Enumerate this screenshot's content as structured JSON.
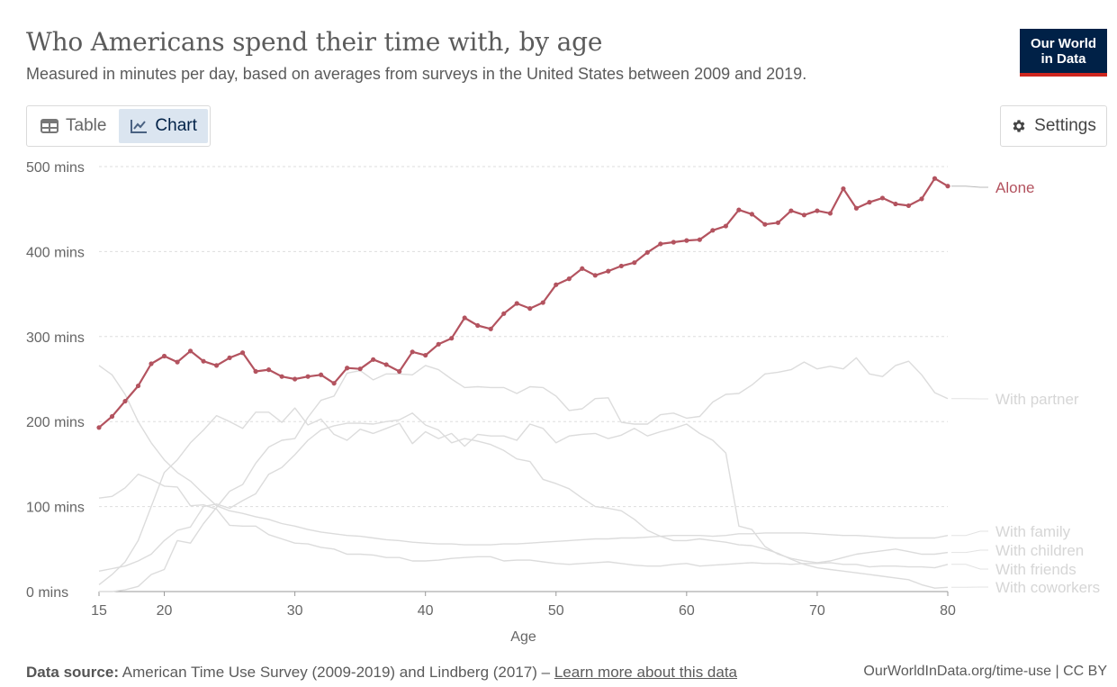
{
  "header": {
    "title": "Who Americans spend their time with, by age",
    "subtitle": "Measured in minutes per day, based on averages from surveys in the United States between 2009 and 2019.",
    "logo_line1": "Our World",
    "logo_line2": "in Data"
  },
  "tabs": [
    {
      "label": "Table",
      "icon": "table-icon"
    },
    {
      "label": "Chart",
      "icon": "line-chart-icon"
    }
  ],
  "settings": {
    "label": "Settings",
    "icon": "gear-icon"
  },
  "footer": {
    "source_label": "Data source:",
    "source_text": "American Time Use Survey (2009-2019) and Lindberg (2017) –",
    "learn_more": "Learn more about this data",
    "credit": "OurWorldInData.org/time-use | CC BY"
  },
  "colors": {
    "highlight": "#b3535f",
    "muted": "#dcdcdc",
    "grid": "#dddddd"
  },
  "chart_data": {
    "type": "line",
    "title": "Who Americans spend their time with, by age",
    "xlabel": "Age",
    "ylabel": "",
    "xlim": [
      15,
      80
    ],
    "ylim": [
      0,
      500
    ],
    "x_ticks": [
      15,
      20,
      30,
      40,
      50,
      60,
      70,
      80
    ],
    "y_ticks": [
      0,
      100,
      200,
      300,
      400,
      500
    ],
    "y_tick_labels": [
      "0 mins",
      "100 mins",
      "200 mins",
      "300 mins",
      "400 mins",
      "500 mins"
    ],
    "x": [
      15,
      16,
      17,
      18,
      19,
      20,
      21,
      22,
      23,
      24,
      25,
      26,
      27,
      28,
      29,
      30,
      31,
      32,
      33,
      34,
      35,
      36,
      37,
      38,
      39,
      40,
      41,
      42,
      43,
      44,
      45,
      46,
      47,
      48,
      49,
      50,
      51,
      52,
      53,
      54,
      55,
      56,
      57,
      58,
      59,
      60,
      61,
      62,
      63,
      64,
      65,
      66,
      67,
      68,
      69,
      70,
      71,
      72,
      73,
      74,
      75,
      76,
      77,
      78,
      79,
      80
    ],
    "highlighted_series": "Alone",
    "series": [
      {
        "name": "Alone",
        "values": [
          193,
          206,
          224,
          242,
          268,
          277,
          270,
          283,
          271,
          266,
          275,
          281,
          259,
          261,
          253,
          250,
          253,
          255,
          245,
          263,
          262,
          273,
          267,
          259,
          282,
          278,
          291,
          298,
          322,
          313,
          309,
          327,
          339,
          333,
          340,
          361,
          368,
          380,
          372,
          377,
          383,
          387,
          399,
          409,
          411,
          413,
          414,
          425,
          430,
          449,
          444,
          432,
          434,
          448,
          443,
          448,
          445,
          474,
          451,
          458,
          463,
          456,
          454,
          462,
          486,
          477
        ]
      },
      {
        "name": "With partner",
        "values": [
          0,
          0,
          2,
          6,
          20,
          26,
          60,
          57,
          80,
          99,
          118,
          126,
          151,
          170,
          178,
          180,
          205,
          225,
          230,
          257,
          260,
          249,
          256,
          256,
          255,
          266,
          261,
          250,
          240,
          241,
          240,
          240,
          233,
          241,
          240,
          230,
          213,
          215,
          227,
          228,
          199,
          197,
          197,
          208,
          210,
          204,
          206,
          223,
          232,
          233,
          243,
          256,
          258,
          261,
          270,
          262,
          265,
          262,
          275,
          256,
          253,
          266,
          271,
          255,
          234,
          227
        ]
      },
      {
        "name": "With family",
        "values": [
          266,
          255,
          232,
          200,
          175,
          155,
          140,
          130,
          115,
          101,
          95,
          92,
          88,
          85,
          80,
          77,
          73,
          70,
          68,
          66,
          65,
          63,
          61,
          60,
          58,
          57,
          56,
          56,
          55,
          55,
          55,
          56,
          56,
          57,
          58,
          59,
          60,
          61,
          62,
          62,
          63,
          63,
          64,
          65,
          66,
          66,
          66,
          65,
          66,
          68,
          68,
          69,
          69,
          69,
          69,
          68,
          67,
          66,
          66,
          65,
          64,
          63,
          63,
          63,
          63,
          66
        ]
      },
      {
        "name": "With children",
        "values": [
          8,
          20,
          35,
          60,
          100,
          140,
          155,
          175,
          190,
          207,
          200,
          192,
          211,
          211,
          199,
          216,
          196,
          203,
          185,
          178,
          191,
          186,
          192,
          198,
          174,
          188,
          180,
          186,
          171,
          185,
          183,
          183,
          178,
          197,
          192,
          175,
          183,
          185,
          186,
          180,
          184,
          192,
          183,
          188,
          192,
          197,
          186,
          178,
          163,
          77,
          73,
          53,
          44,
          39,
          36,
          34,
          36,
          40,
          44,
          46,
          48,
          50,
          47,
          44,
          44,
          46
        ]
      },
      {
        "name": "With friends",
        "values": [
          110,
          112,
          122,
          138,
          132,
          124,
          123,
          101,
          102,
          97,
          78,
          77,
          77,
          67,
          62,
          57,
          56,
          52,
          50,
          44,
          44,
          43,
          40,
          40,
          36,
          36,
          37,
          39,
          40,
          41,
          41,
          36,
          37,
          37,
          35,
          33,
          32,
          33,
          34,
          35,
          33,
          31,
          30,
          30,
          32,
          33,
          30,
          31,
          32,
          33,
          34,
          33,
          33,
          32,
          33,
          33,
          34,
          32,
          32,
          29,
          30,
          30,
          29,
          29,
          28,
          32
        ]
      },
      {
        "name": "With coworkers",
        "values": [
          24,
          27,
          30,
          36,
          44,
          60,
          72,
          76,
          100,
          103,
          98,
          107,
          115,
          138,
          146,
          161,
          178,
          190,
          195,
          198,
          198,
          197,
          200,
          202,
          210,
          196,
          190,
          175,
          180,
          177,
          173,
          166,
          156,
          153,
          132,
          127,
          121,
          110,
          100,
          98,
          95,
          85,
          72,
          65,
          60,
          60,
          62,
          60,
          58,
          55,
          54,
          50,
          45,
          38,
          32,
          28,
          26,
          24,
          22,
          20,
          18,
          16,
          14,
          8,
          4,
          5
        ]
      }
    ],
    "series_labels": [
      "Alone",
      "With partner",
      "With family",
      "With children",
      "With friends",
      "With coworkers"
    ]
  }
}
